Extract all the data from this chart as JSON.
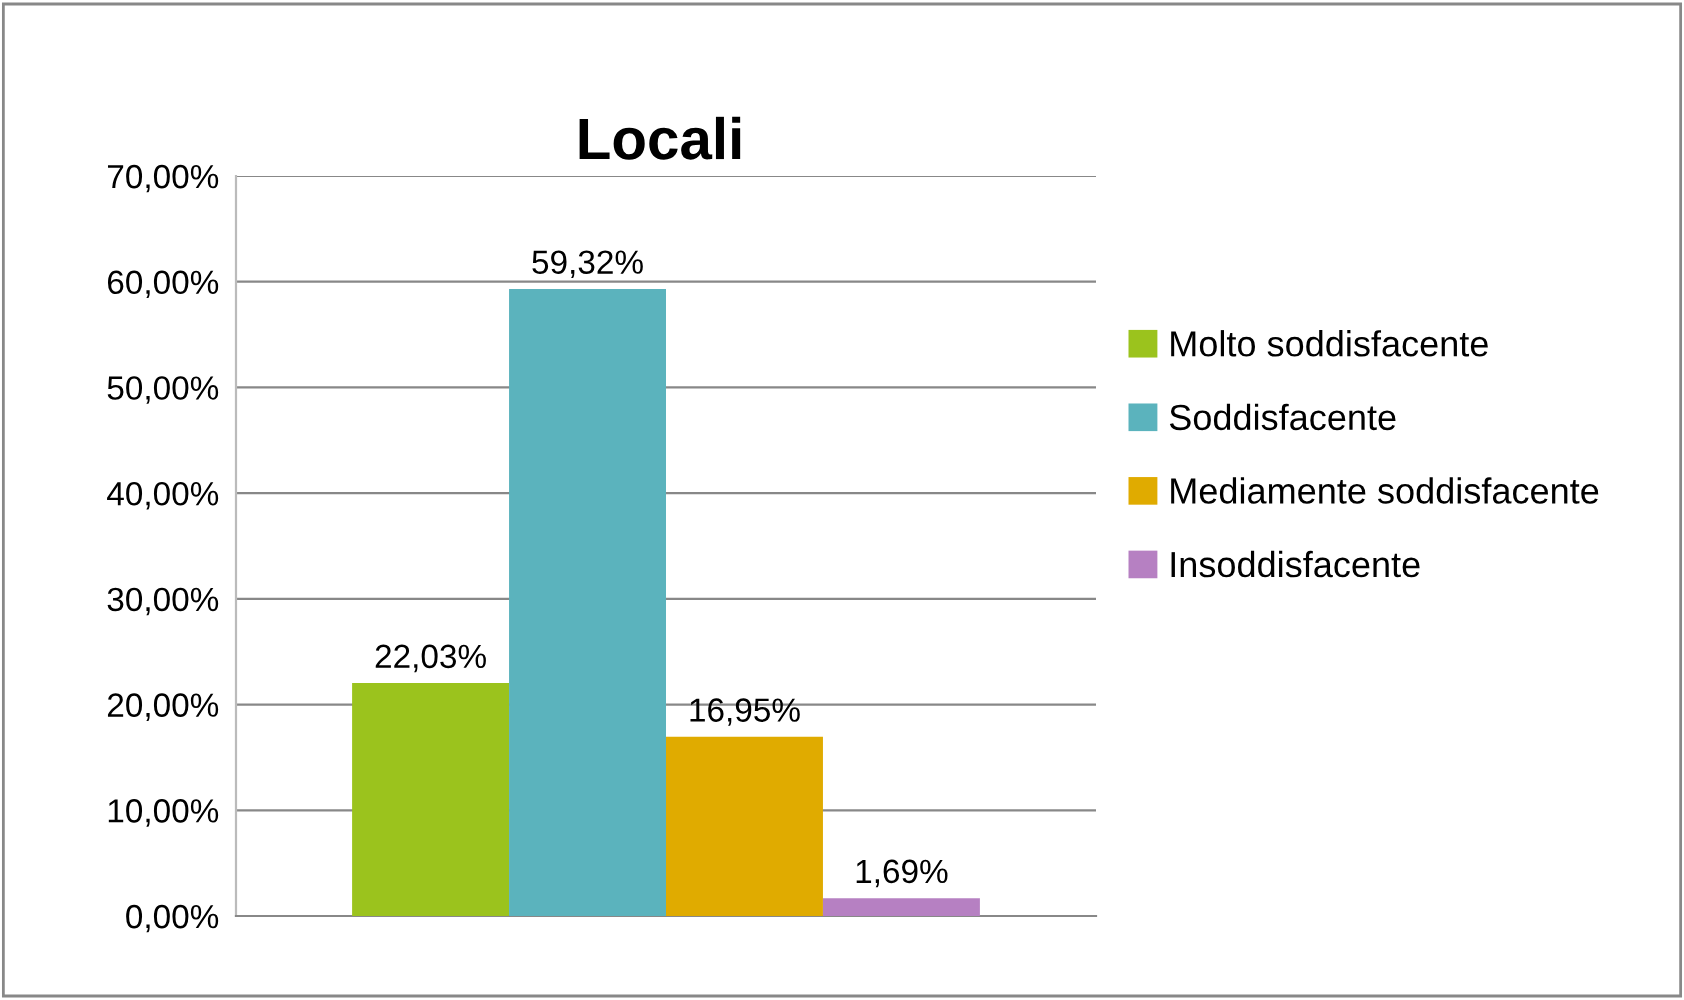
{
  "chart_data": {
    "type": "bar",
    "title": "Locali",
    "categories": [
      null
    ],
    "series": [
      {
        "name": "Molto soddisfacente",
        "color": "#9bc31d",
        "values": [
          22.03
        ],
        "value_labels": [
          "22,03%"
        ]
      },
      {
        "name": "Soddisfacente",
        "color": "#5bb3bd",
        "values": [
          59.32
        ],
        "value_labels": [
          "59,32%"
        ]
      },
      {
        "name": "Mediamente soddisfacente",
        "color": "#e0ab00",
        "values": [
          16.95
        ],
        "value_labels": [
          "16,95%"
        ]
      },
      {
        "name": "Insoddisfacente",
        "color": "#b680c2",
        "values": [
          1.69
        ],
        "value_labels": [
          "1,69%"
        ]
      }
    ],
    "ylim": [
      0,
      70
    ],
    "yticks": [
      {
        "value": 0,
        "label": "0,00%"
      },
      {
        "value": 10,
        "label": "10,00%"
      },
      {
        "value": 20,
        "label": "20,00%"
      },
      {
        "value": 30,
        "label": "30,00%"
      },
      {
        "value": 40,
        "label": "40,00%"
      },
      {
        "value": 50,
        "label": "50,00%"
      },
      {
        "value": 60,
        "label": "60,00%"
      },
      {
        "value": 70,
        "label": "70,00%"
      }
    ],
    "grid": "y",
    "legend": "right"
  }
}
